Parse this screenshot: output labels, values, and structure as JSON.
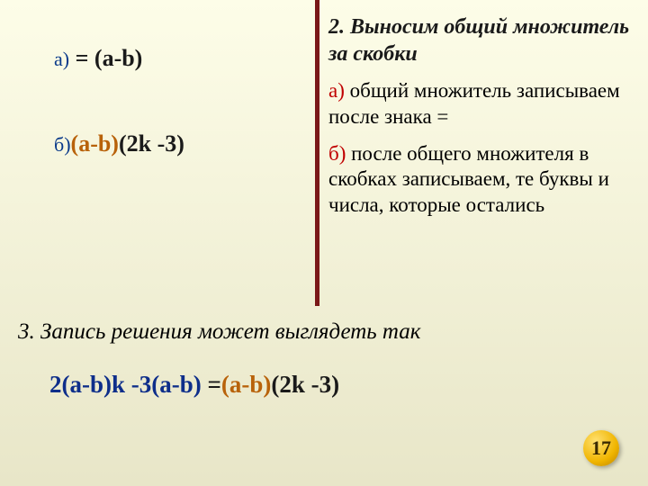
{
  "left": {
    "a_label": "а)",
    "a_eq": " = (a-b)",
    "b_label": "б)",
    "b_orange": "(a-b)",
    "b_rest": "(2k -3)"
  },
  "right": {
    "step2_title": "2.  Выносим  общий  множитель  за  скобки",
    "a_label": "а) ",
    "a_text": "общий  множитель записываем  после  знака  =",
    "b_label": "б) ",
    "b_text": "после  общего множителя  в  скобках  записываем,  те  буквы  и  числа,  которые  остались"
  },
  "step3": "3.  Запись  решения  может  выглядеть  так",
  "final": {
    "p1": "2(a-b)k -3(a-b) ",
    "p2": "=",
    "p3": "(a-b)",
    "p4": "(2k -3)"
  },
  "pageNum": "17",
  "colors": {
    "line": "#7a1818",
    "blue": "#0e2e8a",
    "orange": "#b8620a",
    "red": "#c00000"
  }
}
